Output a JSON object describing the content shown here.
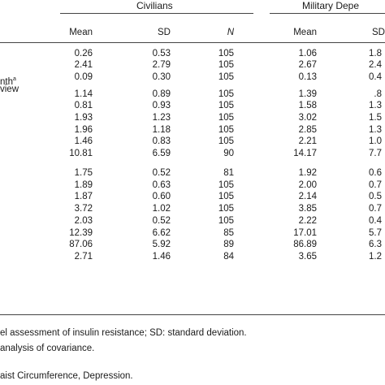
{
  "header": {
    "group_civilians": "Civilians",
    "group_military": "Military Depe",
    "columns": {
      "civ_mean": "Mean",
      "civ_sd": "SD",
      "civ_n": "N",
      "mil_mean": "Mean",
      "mil_sd": "SD"
    }
  },
  "row_label_fragments": {
    "line1": "nth",
    "line1_sup": "a",
    "line2": "view"
  },
  "rows": [
    {
      "civ_mean": "0.26",
      "civ_sd": "0.53",
      "civ_n": "105",
      "mil_mean": "1.06",
      "mil_sd": "1.8"
    },
    {
      "civ_mean": "2.41",
      "civ_sd": "2.79",
      "civ_n": "105",
      "mil_mean": "2.67",
      "mil_sd": "2.4"
    },
    {
      "civ_mean": "0.09",
      "civ_sd": "0.30",
      "civ_n": "105",
      "mil_mean": "0.13",
      "mil_sd": "0.4"
    },
    {
      "civ_mean": "1.14",
      "civ_sd": "0.89",
      "civ_n": "105",
      "mil_mean": "1.39",
      "mil_sd": ".8"
    },
    {
      "civ_mean": "0.81",
      "civ_sd": "0.93",
      "civ_n": "105",
      "mil_mean": "1.58",
      "mil_sd": "1.3"
    },
    {
      "civ_mean": "1.93",
      "civ_sd": "1.23",
      "civ_n": "105",
      "mil_mean": "3.02",
      "mil_sd": "1.5"
    },
    {
      "civ_mean": "1.96",
      "civ_sd": "1.18",
      "civ_n": "105",
      "mil_mean": "2.85",
      "mil_sd": "1.3"
    },
    {
      "civ_mean": "1.46",
      "civ_sd": "0.83",
      "civ_n": "105",
      "mil_mean": "2.21",
      "mil_sd": "1.0"
    },
    {
      "civ_mean": "10.81",
      "civ_sd": "6.59",
      "civ_n": "90",
      "mil_mean": "14.17",
      "mil_sd": "7.7"
    },
    {
      "civ_mean": "1.75",
      "civ_sd": "0.52",
      "civ_n": "81",
      "mil_mean": "1.92",
      "mil_sd": "0.6"
    },
    {
      "civ_mean": "1.89",
      "civ_sd": "0.63",
      "civ_n": "105",
      "mil_mean": "2.00",
      "mil_sd": "0.7"
    },
    {
      "civ_mean": "1.87",
      "civ_sd": "0.60",
      "civ_n": "105",
      "mil_mean": "2.14",
      "mil_sd": "0.5"
    },
    {
      "civ_mean": "3.72",
      "civ_sd": "1.02",
      "civ_n": "105",
      "mil_mean": "3.85",
      "mil_sd": "0.7"
    },
    {
      "civ_mean": "2.03",
      "civ_sd": "0.52",
      "civ_n": "105",
      "mil_mean": "2.22",
      "mil_sd": "0.4"
    },
    {
      "civ_mean": "12.39",
      "civ_sd": "6.62",
      "civ_n": "85",
      "mil_mean": "17.01",
      "mil_sd": "5.7"
    },
    {
      "civ_mean": "87.06",
      "civ_sd": "5.92",
      "civ_n": "89",
      "mil_mean": "86.89",
      "mil_sd": "6.3"
    },
    {
      "civ_mean": "2.71",
      "civ_sd": "1.46",
      "civ_n": "84",
      "mil_mean": "3.65",
      "mil_sd": "1.2"
    }
  ],
  "footnotes": {
    "line1": "el assessment of insulin resistance; SD: standard deviation.",
    "line2": "analysis of covariance.",
    "line3": "aist Circumference, Depression."
  }
}
